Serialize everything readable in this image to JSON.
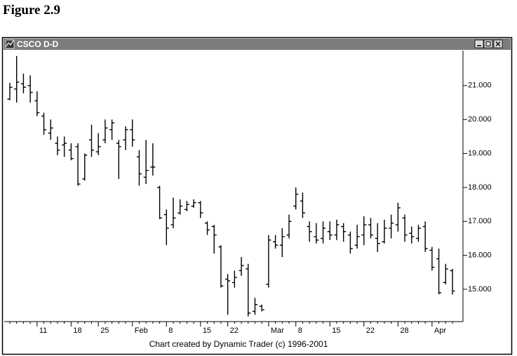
{
  "figure_label": "Figure 2.9",
  "chart_data": {
    "type": "ohlc",
    "title": "CSCO D-D",
    "footer": "Chart created by Dynamic Trader (c) 1996-2001",
    "color": "#000000",
    "categories": [
      null,
      null,
      null,
      null,
      "11",
      null,
      null,
      null,
      null,
      "18",
      null,
      null,
      null,
      "25",
      null,
      null,
      null,
      null,
      "Feb",
      null,
      null,
      null,
      null,
      "8",
      null,
      null,
      null,
      null,
      "15",
      null,
      null,
      null,
      "22",
      null,
      null,
      null,
      null,
      null,
      "Mar",
      null,
      null,
      null,
      "8",
      null,
      null,
      null,
      null,
      "15",
      null,
      null,
      null,
      null,
      "22",
      null,
      null,
      null,
      null,
      "28",
      null,
      null,
      null,
      null,
      "Apr",
      null,
      null,
      null
    ],
    "open": [
      20.6,
      20.9,
      21.05,
      21.0,
      20.55,
      20.1,
      19.6,
      19.3,
      19.25,
      19.1,
      19.2,
      18.25,
      19.4,
      19.05,
      19.4,
      19.7,
      19.3,
      19.4,
      19.7,
      18.9,
      18.3,
      18.6,
      18.0,
      17.2,
      16.9,
      17.25,
      17.35,
      17.45,
      17.55,
      16.95,
      16.85,
      16.25,
      15.3,
      15.2,
      15.55,
      15.6,
      14.35,
      14.5,
      15.15,
      16.4,
      16.3,
      16.6,
      17.45,
      17.6,
      16.85,
      16.55,
      16.5,
      16.7,
      16.6,
      16.85,
      16.6,
      16.3,
      16.6,
      16.9,
      16.5,
      16.4,
      16.8,
      16.9,
      17.1,
      16.65,
      16.5,
      16.85,
      16.15,
      15.9,
      15.2,
      15.55
    ],
    "high": [
      21.08,
      21.87,
      21.35,
      21.3,
      20.83,
      20.2,
      20.0,
      19.5,
      19.5,
      19.3,
      19.3,
      19.0,
      19.85,
      19.6,
      20.0,
      20.0,
      19.4,
      19.8,
      20.0,
      19.1,
      19.4,
      19.3,
      18.05,
      17.35,
      17.7,
      17.65,
      17.6,
      17.65,
      17.6,
      17.0,
      16.9,
      16.3,
      15.45,
      15.55,
      15.95,
      15.75,
      14.75,
      14.55,
      16.6,
      16.6,
      16.8,
      17.2,
      18.0,
      17.85,
      17.0,
      16.95,
      17.0,
      17.0,
      17.05,
      16.95,
      16.7,
      16.9,
      17.15,
      17.1,
      16.95,
      17.05,
      17.2,
      17.55,
      17.2,
      16.85,
      16.9,
      17.0,
      16.25,
      16.2,
      15.75,
      15.6
    ],
    "low": [
      20.57,
      20.5,
      20.77,
      20.5,
      20.1,
      19.55,
      19.4,
      18.95,
      18.9,
      18.8,
      18.05,
      18.2,
      18.9,
      18.95,
      19.3,
      19.4,
      18.25,
      19.1,
      19.2,
      18.05,
      18.1,
      18.35,
      17.07,
      16.3,
      16.8,
      17.2,
      17.3,
      17.4,
      17.1,
      16.6,
      16.05,
      15.05,
      14.25,
      15.05,
      15.4,
      14.2,
      14.25,
      14.35,
      15.05,
      16.2,
      15.95,
      16.5,
      17.35,
      17.1,
      16.4,
      16.35,
      16.35,
      16.45,
      16.45,
      16.4,
      16.05,
      16.2,
      16.3,
      16.5,
      16.1,
      16.35,
      16.5,
      16.7,
      16.4,
      16.35,
      16.4,
      16.1,
      15.55,
      14.85,
      15.15,
      14.85
    ],
    "close": [
      20.95,
      21.1,
      20.95,
      20.8,
      20.2,
      19.7,
      19.75,
      19.1,
      19.3,
      18.85,
      18.1,
      18.95,
      19.1,
      19.2,
      19.75,
      19.9,
      19.2,
      19.7,
      19.4,
      18.4,
      18.5,
      18.6,
      17.1,
      16.8,
      17.1,
      17.45,
      17.5,
      17.55,
      17.25,
      16.75,
      16.6,
      15.1,
      15.25,
      15.35,
      15.7,
      14.3,
      14.55,
      14.4,
      16.45,
      16.3,
      16.55,
      17.0,
      17.8,
      17.25,
      16.7,
      16.45,
      16.8,
      16.6,
      16.9,
      16.7,
      16.2,
      16.55,
      16.9,
      16.6,
      16.35,
      16.8,
      16.95,
      17.4,
      16.6,
      16.55,
      16.8,
      16.2,
      15.65,
      14.9,
      15.6,
      14.95
    ],
    "ylim": [
      14.05,
      22.03
    ],
    "yticks": [
      {
        "value": 15,
        "label": "15.000"
      },
      {
        "value": 16,
        "label": "16.000"
      },
      {
        "value": 17,
        "label": "17.000"
      },
      {
        "value": 18,
        "label": "18.000"
      },
      {
        "value": 19,
        "label": "19.000"
      },
      {
        "value": 20,
        "label": "20.000"
      },
      {
        "value": 21,
        "label": "21.000"
      }
    ],
    "grid": false
  }
}
